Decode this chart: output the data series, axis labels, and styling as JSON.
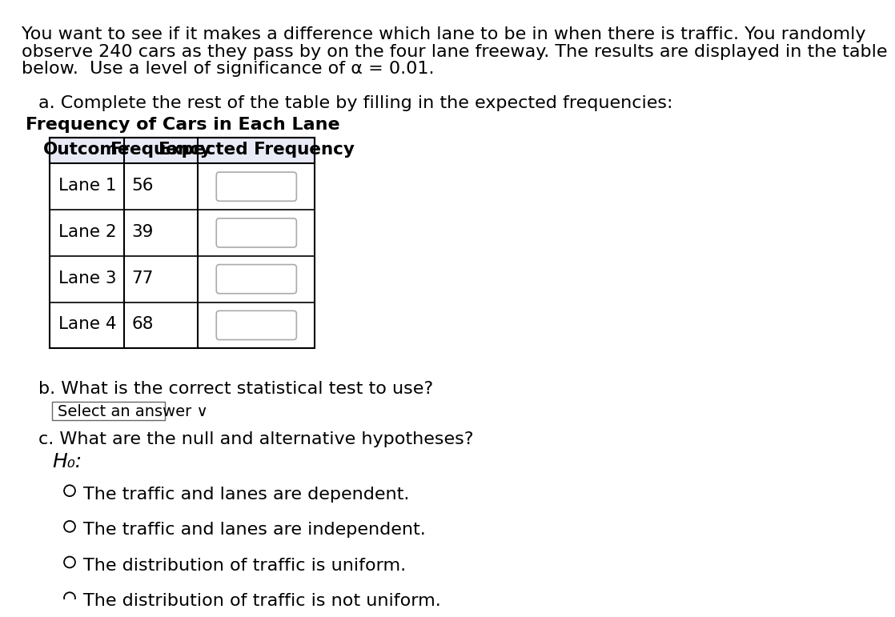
{
  "bg_color": "#ffffff",
  "text_color": "#000000",
  "intro_line1": "You want to see if it makes a difference which lane to be in when there is traffic. You randomly",
  "intro_line2": "observe 240 cars as they pass by on the four lane freeway. The results are displayed in the table",
  "intro_line3": "below.  Use a level of significance of α = 0.01.",
  "part_a_label": "a. Complete the rest of the table by filling in the expected frequencies:",
  "table_title": "Frequency of Cars in Each Lane",
  "table_headers": [
    "Outcome",
    "Frequency",
    "Expected Frequency"
  ],
  "header_bg": "#e8eaf6",
  "rows": [
    {
      "outcome": "Lane 1",
      "frequency": "56"
    },
    {
      "outcome": "Lane 2",
      "frequency": "39"
    },
    {
      "outcome": "Lane 3",
      "frequency": "77"
    },
    {
      "outcome": "Lane 4",
      "frequency": "68"
    }
  ],
  "part_b_label": "b. What is the correct statistical test to use?",
  "select_answer_text": "Select an answer ∨",
  "part_c_label": "c. What are the null and alternative hypotheses?",
  "h0_label": "H₀:",
  "radio_options": [
    "The traffic and lanes are dependent.",
    "The traffic and lanes are independent.",
    "The distribution of traffic is uniform.",
    "The distribution of traffic is not uniform."
  ],
  "font_size_main": 16,
  "font_size_table_title": 16,
  "font_size_table_header": 15.5,
  "font_size_table_cell": 15.5,
  "font_size_select": 14,
  "font_size_radio": 16,
  "input_box_color": "#ffffff",
  "input_box_border": "#aaaaaa"
}
